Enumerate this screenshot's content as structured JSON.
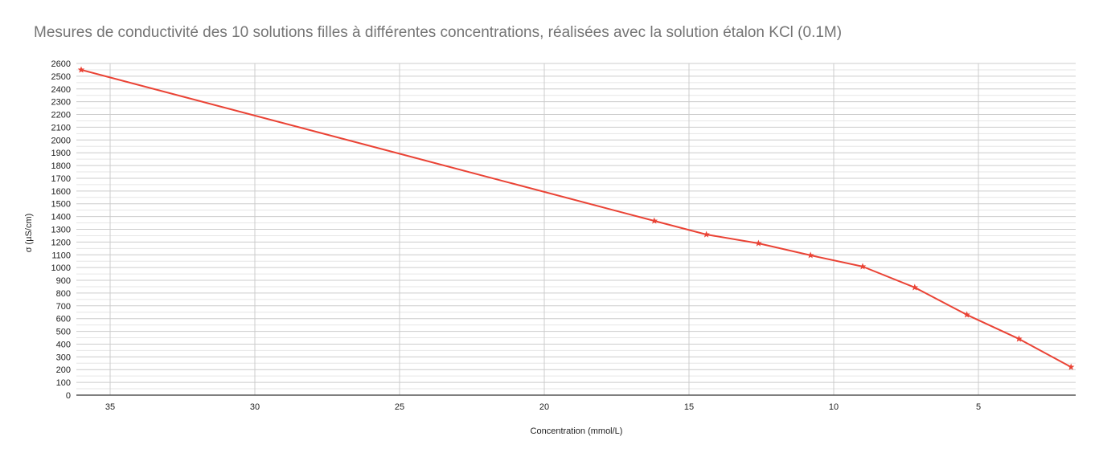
{
  "chart_data": {
    "type": "line",
    "title": "Mesures de conductivité des 10 solutions filles à différentes concentrations, réalisées avec la solution étalon KCl (0.1M)",
    "xlabel": "Concentration (mmol/L)",
    "ylabel": "σ (µS/cm)",
    "x_reversed": true,
    "xlim": [
      36,
      1.6
    ],
    "ylim": [
      0,
      2600
    ],
    "x_ticks": [
      35,
      30,
      25,
      20,
      15,
      10,
      5
    ],
    "y_ticks": [
      0,
      100,
      200,
      300,
      400,
      500,
      600,
      700,
      800,
      900,
      1000,
      1100,
      1200,
      1300,
      1400,
      1500,
      1600,
      1700,
      1800,
      1900,
      2000,
      2100,
      2200,
      2300,
      2400,
      2500,
      2600
    ],
    "grid": true,
    "legend": "none",
    "series": [
      {
        "name": "σ (µS/cm)",
        "color": "#ea4335",
        "marker": "star",
        "x": [
          36.0,
          16.2,
          14.4,
          12.6,
          10.8,
          9.0,
          7.2,
          5.4,
          3.6,
          1.8
        ],
        "values": [
          2550,
          1366,
          1259,
          1190,
          1096,
          1008,
          844,
          630,
          441,
          220
        ]
      }
    ]
  }
}
